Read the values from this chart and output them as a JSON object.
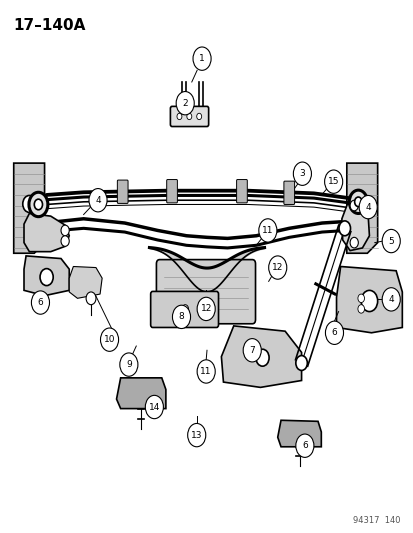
{
  "title": "17–140A",
  "watermark": "94317  140",
  "background_color": "#ffffff",
  "line_color": "#000000",
  "fig_width": 4.14,
  "fig_height": 5.33,
  "dpi": 100
}
